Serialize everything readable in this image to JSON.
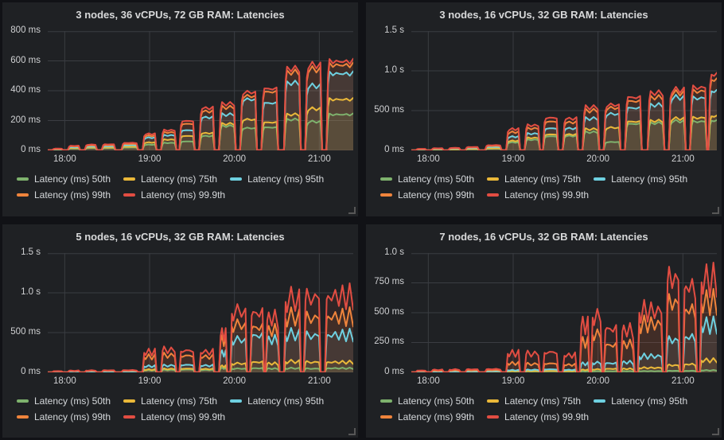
{
  "theme": {
    "page_bg": "#111216",
    "panel_bg": "#1f2124",
    "grid_color": "#3a3d42",
    "title_color": "#d8d9da",
    "axis_text_color": "#cfd0d2",
    "legend_text_color": "#d5d8db",
    "fill_opacity": 0.09
  },
  "legend": [
    {
      "key": "p50",
      "label": "Latency (ms) 50th",
      "color": "#7EB26D"
    },
    {
      "key": "p75",
      "label": "Latency (ms) 75th",
      "color": "#EAB839"
    },
    {
      "key": "p95",
      "label": "Latency (ms) 95th",
      "color": "#6ED0E0"
    },
    {
      "key": "p99",
      "label": "Latency (ms) 99th",
      "color": "#EF843C"
    },
    {
      "key": "p999",
      "label": "Latency (ms) 99.9th",
      "color": "#E24D42"
    }
  ],
  "chart_data": [
    {
      "type": "area",
      "title": "3 nodes, 36 vCPUs, 72 GB RAM: Latencies",
      "ylabel": "latency",
      "ylim": [
        0,
        800
      ],
      "y_ticks": [
        {
          "v": 0,
          "label": "0 ms"
        },
        {
          "v": 200,
          "label": "200 ms"
        },
        {
          "v": 400,
          "label": "400 ms"
        },
        {
          "v": 600,
          "label": "600 ms"
        },
        {
          "v": 800,
          "label": "800 ms"
        }
      ],
      "x_domain": [
        0,
        216
      ],
      "x_start_time": "17:48",
      "x_ticks": [
        {
          "t": 12,
          "label": "18:00"
        },
        {
          "t": 72,
          "label": "19:00"
        },
        {
          "t": 132,
          "label": "20:00"
        },
        {
          "t": 192,
          "label": "21:00"
        }
      ],
      "grid": true,
      "legend_position": "bottom",
      "wobble": 0.08,
      "bursts": [
        {
          "t0": 3,
          "t1": 11,
          "p50": 5,
          "p75": 6,
          "p95": 8,
          "p99": 10,
          "p999": 12
        },
        {
          "t0": 14,
          "t1": 23,
          "p50": 13,
          "p75": 16,
          "p95": 22,
          "p99": 28,
          "p999": 32
        },
        {
          "t0": 26,
          "t1": 35,
          "p50": 16,
          "p75": 20,
          "p95": 27,
          "p99": 34,
          "p999": 40
        },
        {
          "t0": 38,
          "t1": 48,
          "p50": 16,
          "p75": 20,
          "p95": 28,
          "p99": 36,
          "p999": 42
        },
        {
          "t0": 52,
          "t1": 64,
          "p50": 20,
          "p75": 26,
          "p95": 36,
          "p99": 45,
          "p999": 52
        },
        {
          "t0": 67,
          "t1": 77,
          "p50": 40,
          "p75": 55,
          "p95": 88,
          "p99": 102,
          "p999": 115
        },
        {
          "t0": 80,
          "t1": 91,
          "p50": 52,
          "p75": 75,
          "p95": 105,
          "p99": 125,
          "p999": 140
        },
        {
          "t0": 93,
          "t1": 104,
          "p50": 62,
          "p75": 100,
          "p95": 140,
          "p99": 185,
          "p999": 205
        },
        {
          "t0": 107,
          "t1": 118,
          "p50": 100,
          "p75": 120,
          "p95": 230,
          "p99": 272,
          "p999": 295
        },
        {
          "t0": 121,
          "t1": 133,
          "p50": 170,
          "p75": 185,
          "p95": 250,
          "p99": 300,
          "p999": 325
        },
        {
          "t0": 136,
          "t1": 148,
          "p50": 155,
          "p75": 215,
          "p95": 355,
          "p99": 378,
          "p999": 405
        },
        {
          "t0": 151,
          "t1": 163,
          "p50": 160,
          "p75": 195,
          "p95": 330,
          "p99": 408,
          "p999": 430
        },
        {
          "t0": 167,
          "t1": 179,
          "p50": 215,
          "p75": 250,
          "p95": 470,
          "p99": 545,
          "p999": 570
        },
        {
          "t0": 182,
          "t1": 194,
          "p50": 200,
          "p75": 290,
          "p95": 450,
          "p99": 565,
          "p999": 595
        },
        {
          "t0": 197,
          "t1": 216,
          "p50": 250,
          "p75": 355,
          "p95": 535,
          "p99": 595,
          "p999": 620
        }
      ]
    },
    {
      "type": "area",
      "title": "3 nodes, 16 vCPUs, 32 GB RAM: Latencies",
      "ylabel": "latency",
      "ylim": [
        0,
        1500
      ],
      "y_ticks": [
        {
          "v": 0,
          "label": "0 ms"
        },
        {
          "v": 500,
          "label": "500 ms"
        },
        {
          "v": 1000,
          "label": "1.0 s"
        },
        {
          "v": 1500,
          "label": "1.5 s"
        }
      ],
      "x_domain": [
        0,
        216
      ],
      "x_start_time": "17:48",
      "x_ticks": [
        {
          "t": 12,
          "label": "18:00"
        },
        {
          "t": 72,
          "label": "19:00"
        },
        {
          "t": 132,
          "label": "20:00"
        },
        {
          "t": 192,
          "label": "21:00"
        }
      ],
      "grid": true,
      "legend_position": "bottom",
      "wobble": 0.1,
      "bursts": [
        {
          "t0": 3,
          "t1": 11,
          "p50": 7,
          "p75": 9,
          "p95": 13,
          "p99": 17,
          "p999": 20
        },
        {
          "t0": 14,
          "t1": 23,
          "p50": 11,
          "p75": 13,
          "p95": 19,
          "p99": 24,
          "p999": 28
        },
        {
          "t0": 26,
          "t1": 35,
          "p50": 12,
          "p75": 15,
          "p95": 22,
          "p99": 28,
          "p999": 33
        },
        {
          "t0": 38,
          "t1": 48,
          "p50": 16,
          "p75": 20,
          "p95": 30,
          "p99": 38,
          "p999": 44
        },
        {
          "t0": 52,
          "t1": 64,
          "p50": 22,
          "p75": 28,
          "p95": 45,
          "p99": 58,
          "p999": 68
        },
        {
          "t0": 67,
          "t1": 77,
          "p50": 105,
          "p75": 125,
          "p95": 180,
          "p99": 240,
          "p999": 280
        },
        {
          "t0": 80,
          "t1": 91,
          "p50": 140,
          "p75": 165,
          "p95": 220,
          "p99": 290,
          "p999": 330
        },
        {
          "t0": 93,
          "t1": 104,
          "p50": 185,
          "p75": 210,
          "p95": 290,
          "p99": 380,
          "p999": 430
        },
        {
          "t0": 107,
          "t1": 118,
          "p50": 190,
          "p75": 210,
          "p95": 290,
          "p99": 370,
          "p999": 420
        },
        {
          "t0": 121,
          "t1": 133,
          "p50": 240,
          "p75": 280,
          "p95": 420,
          "p99": 525,
          "p999": 570
        },
        {
          "t0": 136,
          "t1": 148,
          "p50": 110,
          "p75": 300,
          "p95": 480,
          "p99": 560,
          "p999": 600
        },
        {
          "t0": 151,
          "t1": 163,
          "p50": 350,
          "p75": 380,
          "p95": 560,
          "p99": 650,
          "p999": 700
        },
        {
          "t0": 167,
          "t1": 179,
          "p50": 360,
          "p75": 390,
          "p95": 600,
          "p99": 700,
          "p999": 760
        },
        {
          "t0": 182,
          "t1": 194,
          "p50": 385,
          "p75": 420,
          "p95": 700,
          "p99": 760,
          "p999": 800
        },
        {
          "t0": 197,
          "t1": 209,
          "p50": 380,
          "p75": 430,
          "p95": 690,
          "p99": 780,
          "p999": 830
        },
        {
          "t0": 210,
          "t1": 216,
          "p50": 390,
          "p75": 450,
          "p95": 780,
          "p99": 930,
          "p999": 1000
        }
      ]
    },
    {
      "type": "area",
      "title": "5 nodes, 16 vCPUs, 32 GB RAM: Latencies",
      "ylabel": "latency",
      "ylim": [
        0,
        1500
      ],
      "y_ticks": [
        {
          "v": 0,
          "label": "0 ms"
        },
        {
          "v": 500,
          "label": "500 ms"
        },
        {
          "v": 1000,
          "label": "1.0 s"
        },
        {
          "v": 1500,
          "label": "1.5 s"
        }
      ],
      "x_domain": [
        0,
        216
      ],
      "x_start_time": "17:48",
      "x_ticks": [
        {
          "t": 12,
          "label": "18:00"
        },
        {
          "t": 72,
          "label": "19:00"
        },
        {
          "t": 132,
          "label": "20:00"
        },
        {
          "t": 192,
          "label": "21:00"
        }
      ],
      "grid": true,
      "legend_position": "bottom",
      "wobble": 0.3,
      "bursts": [
        {
          "t0": 3,
          "t1": 11,
          "p50": 4,
          "p75": 5,
          "p95": 8,
          "p99": 14,
          "p999": 18
        },
        {
          "t0": 14,
          "t1": 23,
          "p50": 5,
          "p75": 7,
          "p95": 11,
          "p99": 20,
          "p999": 25
        },
        {
          "t0": 26,
          "t1": 35,
          "p50": 6,
          "p75": 8,
          "p95": 12,
          "p99": 22,
          "p999": 28
        },
        {
          "t0": 38,
          "t1": 48,
          "p50": 6,
          "p75": 8,
          "p95": 13,
          "p99": 24,
          "p999": 30
        },
        {
          "t0": 52,
          "t1": 64,
          "p50": 7,
          "p75": 9,
          "p95": 14,
          "p99": 25,
          "p999": 32
        },
        {
          "t0": 67,
          "t1": 77,
          "p50": 30,
          "p75": 40,
          "p95": 90,
          "p99": 230,
          "p999": 300
        },
        {
          "t0": 80,
          "t1": 91,
          "p50": 35,
          "p75": 50,
          "p95": 100,
          "p99": 250,
          "p999": 330
        },
        {
          "t0": 93,
          "t1": 104,
          "p50": 40,
          "p75": 55,
          "p95": 110,
          "p99": 245,
          "p999": 320
        },
        {
          "t0": 107,
          "t1": 118,
          "p50": 35,
          "p75": 50,
          "p95": 100,
          "p99": 230,
          "p999": 300
        },
        {
          "t0": 121,
          "t1": 127,
          "p50": 60,
          "p75": 90,
          "p95": 280,
          "p99": 470,
          "p999": 560
        },
        {
          "t0": 129,
          "t1": 141,
          "p50": 55,
          "p75": 130,
          "p95": 480,
          "p99": 700,
          "p999": 900
        },
        {
          "t0": 143,
          "t1": 153,
          "p50": 60,
          "p75": 150,
          "p95": 540,
          "p99": 660,
          "p999": 870
        },
        {
          "t0": 154,
          "t1": 164,
          "p50": 55,
          "p75": 130,
          "p95": 480,
          "p99": 620,
          "p999": 800
        },
        {
          "t0": 167,
          "t1": 179,
          "p50": 60,
          "p75": 160,
          "p95": 560,
          "p99": 820,
          "p999": 1080
        },
        {
          "t0": 181,
          "t1": 193,
          "p50": 55,
          "p75": 150,
          "p95": 540,
          "p99": 800,
          "p999": 1100
        },
        {
          "t0": 196,
          "t1": 216,
          "p50": 60,
          "p75": 150,
          "p95": 550,
          "p99": 820,
          "p999": 1120
        }
      ]
    },
    {
      "type": "area",
      "title": "7 nodes, 16 vCPUs, 32 GB RAM: Latencies",
      "ylabel": "latency",
      "ylim": [
        0,
        1000
      ],
      "y_ticks": [
        {
          "v": 0,
          "label": "0 ms"
        },
        {
          "v": 250,
          "label": "250 ms"
        },
        {
          "v": 500,
          "label": "500 ms"
        },
        {
          "v": 750,
          "label": "750 ms"
        },
        {
          "v": 1000,
          "label": "1.0 s"
        }
      ],
      "x_domain": [
        0,
        216
      ],
      "x_start_time": "17:48",
      "x_ticks": [
        {
          "t": 12,
          "label": "18:00"
        },
        {
          "t": 72,
          "label": "19:00"
        },
        {
          "t": 132,
          "label": "20:00"
        },
        {
          "t": 192,
          "label": "21:00"
        }
      ],
      "grid": true,
      "legend_position": "bottom",
      "wobble": 0.32,
      "bursts": [
        {
          "t0": 3,
          "t1": 11,
          "p50": 3,
          "p75": 4,
          "p95": 6,
          "p99": 12,
          "p999": 18
        },
        {
          "t0": 14,
          "t1": 23,
          "p50": 4,
          "p75": 5,
          "p95": 8,
          "p99": 16,
          "p999": 25
        },
        {
          "t0": 26,
          "t1": 35,
          "p50": 4,
          "p75": 6,
          "p95": 9,
          "p99": 18,
          "p999": 28
        },
        {
          "t0": 38,
          "t1": 48,
          "p50": 4,
          "p75": 6,
          "p95": 10,
          "p99": 20,
          "p999": 30
        },
        {
          "t0": 52,
          "t1": 64,
          "p50": 5,
          "p75": 7,
          "p95": 11,
          "p99": 22,
          "p999": 32
        },
        {
          "t0": 67,
          "t1": 77,
          "p50": 8,
          "p75": 12,
          "p95": 22,
          "p99": 90,
          "p999": 190
        },
        {
          "t0": 80,
          "t1": 91,
          "p50": 8,
          "p75": 13,
          "p95": 25,
          "p99": 82,
          "p999": 185
        },
        {
          "t0": 93,
          "t1": 104,
          "p50": 9,
          "p75": 15,
          "p95": 30,
          "p99": 88,
          "p999": 200
        },
        {
          "t0": 107,
          "t1": 117,
          "p50": 8,
          "p75": 13,
          "p95": 25,
          "p99": 75,
          "p999": 170
        },
        {
          "t0": 119,
          "t1": 126,
          "p50": 10,
          "p75": 25,
          "p95": 85,
          "p99": 300,
          "p999": 470
        },
        {
          "t0": 127,
          "t1": 135,
          "p50": 11,
          "p75": 30,
          "p95": 95,
          "p99": 380,
          "p999": 560
        },
        {
          "t0": 136,
          "t1": 146,
          "p50": 11,
          "p75": 35,
          "p95": 90,
          "p99": 270,
          "p999": 430
        },
        {
          "t0": 148,
          "t1": 158,
          "p50": 11,
          "p75": 35,
          "p95": 100,
          "p99": 280,
          "p999": 420
        },
        {
          "t0": 160,
          "t1": 178,
          "p50": 12,
          "p75": 45,
          "p95": 160,
          "p99": 480,
          "p999": 610
        },
        {
          "t0": 180,
          "t1": 190,
          "p50": 15,
          "p75": 70,
          "p95": 320,
          "p99": 690,
          "p999": 930
        },
        {
          "t0": 192,
          "t1": 202,
          "p50": 15,
          "p75": 80,
          "p95": 350,
          "p99": 620,
          "p999": 850
        },
        {
          "t0": 204,
          "t1": 216,
          "p50": 20,
          "p75": 120,
          "p95": 470,
          "p99": 700,
          "p999": 920
        }
      ]
    }
  ]
}
